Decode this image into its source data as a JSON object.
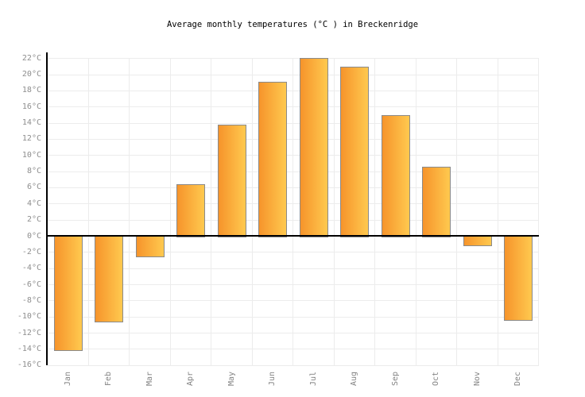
{
  "title": "Average monthly temperatures (°C ) in Breckenridge",
  "colors": {
    "background": "#FFFFFF",
    "bar_gradient_left": "#F6942B",
    "bar_gradient_right": "#FFC94F",
    "bar_border": "#8A8A8A",
    "axis_line": "#000000",
    "gridline": "#ECECEC",
    "y_tick_label": "#8E8E8E",
    "x_tick_label": "#848484",
    "title_text": "#000000"
  },
  "chart_data": {
    "type": "bar",
    "title": "Average monthly temperatures (°C ) in Breckenridge",
    "categories": [
      "Jan",
      "Feb",
      "Mar",
      "Apr",
      "May",
      "Jun",
      "Jul",
      "Aug",
      "Sep",
      "Oct",
      "Nov",
      "Dec"
    ],
    "values": [
      -14.3,
      -10.7,
      -2.7,
      6.4,
      13.8,
      19.1,
      22.0,
      20.9,
      14.9,
      8.6,
      -1.3,
      -10.5
    ],
    "unit": "°C",
    "xlabel": "",
    "ylabel": "",
    "ylim": [
      -16,
      22
    ],
    "ytick_step": 2,
    "ytick_labels": [
      "22°C",
      "20°C",
      "18°C",
      "16°C",
      "14°C",
      "12°C",
      "10°C",
      "8°C",
      "6°C",
      "4°C",
      "2°C",
      "0°C",
      "-2°C",
      "-4°C",
      "-6°C",
      "-8°C",
      "-10°C",
      "-12°C",
      "-14°C",
      "-16°C"
    ],
    "yticks": [
      22,
      20,
      18,
      16,
      14,
      12,
      10,
      8,
      6,
      4,
      2,
      0,
      -2,
      -4,
      -6,
      -8,
      -10,
      -12,
      -14,
      -16
    ],
    "grid": true,
    "legend": false
  }
}
